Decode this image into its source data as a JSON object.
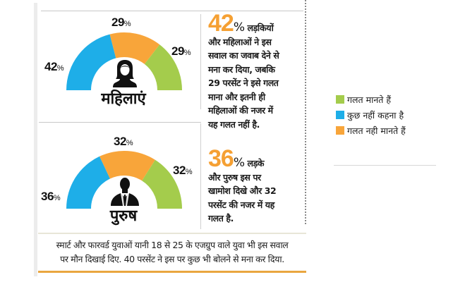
{
  "chart_data": [
    {
      "type": "pie",
      "subtype": "semicircle-gauge",
      "title": "महिलाएं",
      "categories": [
        "कुछ नहीं कहना है",
        "गलत नही मानते हैं",
        "गलत मानते हैं"
      ],
      "values": [
        42,
        29,
        29
      ],
      "unit": "%",
      "colors": [
        "#1eaee8",
        "#f8a53a",
        "#a4cc4c"
      ]
    },
    {
      "type": "pie",
      "subtype": "semicircle-gauge",
      "title": "पुरुष",
      "categories": [
        "कुछ नहीं कहना है",
        "गलत नही मानते हैं",
        "गलत मानते हैं"
      ],
      "values": [
        36,
        32,
        32
      ],
      "unit": "%",
      "colors": [
        "#1eaee8",
        "#f8a53a",
        "#a4cc4c"
      ]
    }
  ],
  "colors": {
    "blue": "#1eaee8",
    "orange": "#f8a53a",
    "green": "#a4cc4c",
    "highlight_number": "#f5a033"
  },
  "women": {
    "label": "महिलाएं",
    "blue_pct": "42",
    "orange_pct": "29",
    "green_pct": "29",
    "pct_sign": "%",
    "summary_number": "42",
    "summary_pct_sign": "%",
    "summary_lines": [
      "लड़कियों",
      "और महिलाओं ने इस",
      "सवाल का जवाब देने से",
      "मना कर दिया, जबकि",
      "29 परसेंट ने इसे गलत",
      "माना और इतनी ही",
      "महिलाओं की नजर में",
      "यह गलत नहीं है."
    ]
  },
  "men": {
    "label": "पुरुष",
    "blue_pct": "36",
    "orange_pct": "32",
    "green_pct": "32",
    "pct_sign": "%",
    "summary_number": "36",
    "summary_pct_sign": "%",
    "summary_lines": [
      "लड़के",
      "और पुरुष इस पर",
      "खामोश दिखे और 32",
      "परसेंट की नजर में यह",
      "गलत है."
    ]
  },
  "caption": {
    "line1": "स्मार्ट और फारवर्ड युवाओं यानी 18 से 25 के एजग्रुप वाले युवा भी इस सवाल",
    "line2": "पर मौन दिखाई दिए. 40 परसेंट ने इस पर कुछ भी बोलने से मना कर दिया."
  },
  "legend": {
    "items": [
      {
        "label": "गलत मानते हैं",
        "color": "#a4cc4c"
      },
      {
        "label": "कुछ नहीं कहना है",
        "color": "#1eaee8"
      },
      {
        "label": "गलत नही मानते हैं",
        "color": "#f8a53a"
      }
    ]
  }
}
